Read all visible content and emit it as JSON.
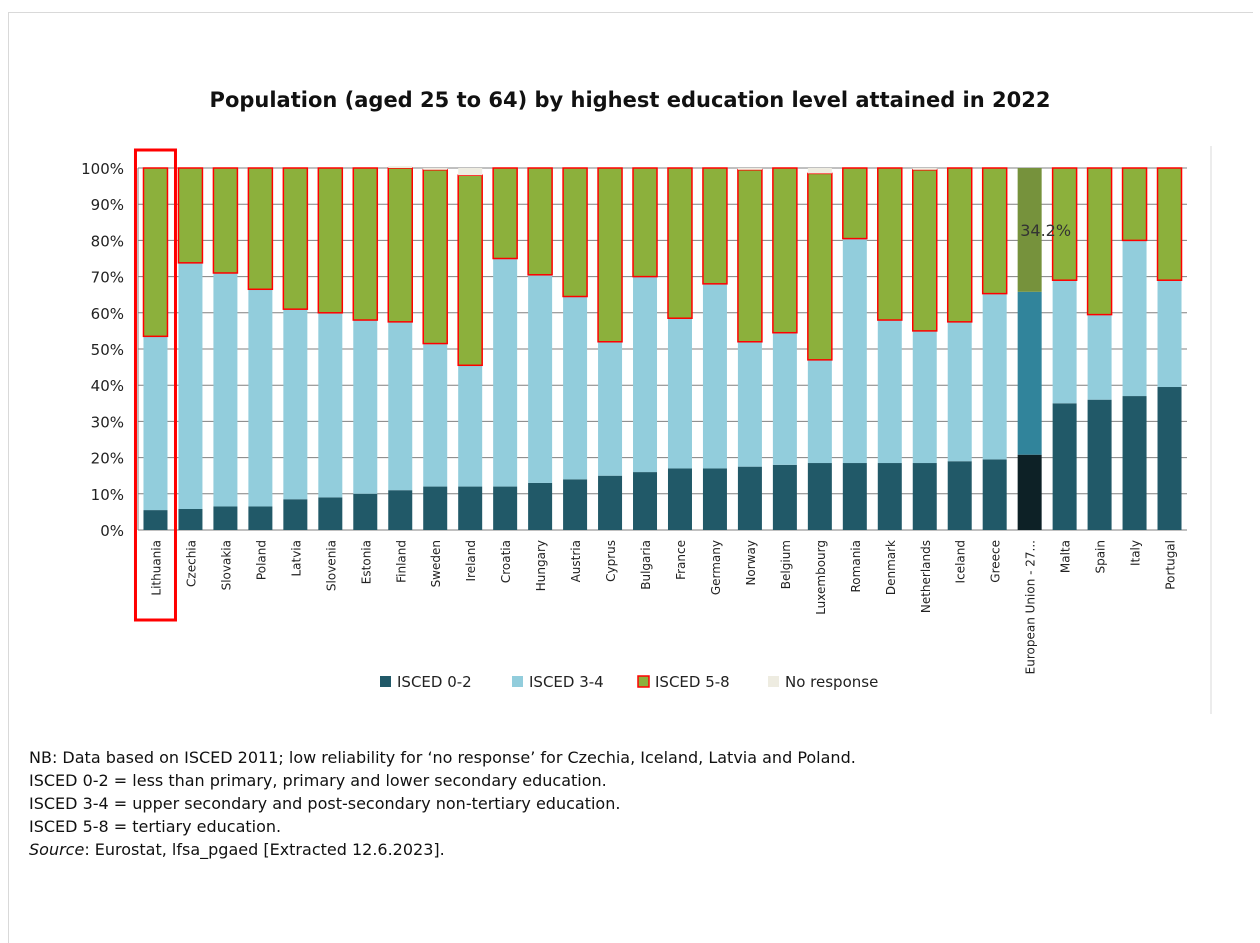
{
  "chart_data": {
    "type": "bar",
    "stacked": true,
    "title": "Population (aged 25 to 64) by highest education level attained in 2022",
    "ylim": [
      0,
      100
    ],
    "y_ticks": [
      "0%",
      "10%",
      "20%",
      "30%",
      "40%",
      "50%",
      "60%",
      "70%",
      "80%",
      "90%",
      "100%"
    ],
    "categories": [
      "Lithuania",
      "Czechia",
      "Slovakia",
      "Poland",
      "Latvia",
      "Slovenia",
      "Estonia",
      "Finland",
      "Sweden",
      "Ireland",
      "Croatia",
      "Hungary",
      "Austria",
      "Cyprus",
      "Bulgaria",
      "France",
      "Germany",
      "Norway",
      "Belgium",
      "Luxembourg",
      "Romania",
      "Denmark",
      "Netherlands",
      "Iceland",
      "Greece",
      "European Union - 27...",
      "Malta",
      "Spain",
      "Italy",
      "Portugal"
    ],
    "highlighted_category": "Lithuania",
    "emphasized_category": "European Union - 27...",
    "series": [
      {
        "name": "ISCED 0-2",
        "color": "#215968",
        "values": [
          5.5,
          5.8,
          6.5,
          6.5,
          8.5,
          9,
          10,
          11,
          12,
          12,
          12,
          13,
          14,
          15,
          16,
          17,
          17,
          17.5,
          18,
          18.5,
          18.5,
          18.5,
          18.5,
          19,
          19.5,
          20.8,
          35,
          36,
          37,
          39.5
        ]
      },
      {
        "name": "ISCED 3-4",
        "color": "#92cddc",
        "values": [
          48,
          68,
          64.5,
          60,
          52.5,
          51,
          48,
          46.5,
          39.5,
          33.5,
          63,
          57.5,
          50.5,
          37,
          54,
          41.5,
          51,
          34.5,
          36.5,
          28.5,
          62,
          39.5,
          36.5,
          38.5,
          45.8,
          45,
          34,
          23.5,
          43,
          29.5
        ]
      },
      {
        "name": "ISCED 5-8",
        "color": "#8cb03c",
        "values": [
          46.5,
          26.2,
          29,
          33.5,
          39,
          40,
          42,
          42.5,
          48,
          52.5,
          25,
          29.5,
          35.5,
          48,
          30,
          41.5,
          32,
          47.5,
          45.5,
          51.5,
          19.5,
          42,
          44.5,
          42.5,
          34.7,
          34.2,
          31,
          40.5,
          20,
          31
        ]
      },
      {
        "name": "No response",
        "color": "#eeece1",
        "values": [
          0,
          0,
          0,
          0,
          0,
          0,
          0,
          0.5,
          0.5,
          2,
          0,
          0,
          0,
          0,
          0,
          0,
          0,
          0.5,
          0,
          1.5,
          0,
          0,
          0.5,
          0,
          0,
          0,
          0,
          0,
          0,
          0
        ]
      }
    ],
    "annotation": "34.2%",
    "legend_position": "bottom",
    "grid": true
  },
  "notes": {
    "line1": "NB: Data based on ISCED 2011; low reliability for ‘no response’ for Czechia, Iceland, Latvia and Poland.",
    "line2": "ISCED 0-2 = less than primary, primary and lower secondary education.",
    "line3": "ISCED 3-4 = upper secondary and post-secondary non-tertiary education.",
    "line4": "ISCED 5-8 = tertiary education.",
    "source_label": "Source",
    "source_text": ": Eurostat, lfsa_pgaed [Extracted 12.6.2023]."
  }
}
